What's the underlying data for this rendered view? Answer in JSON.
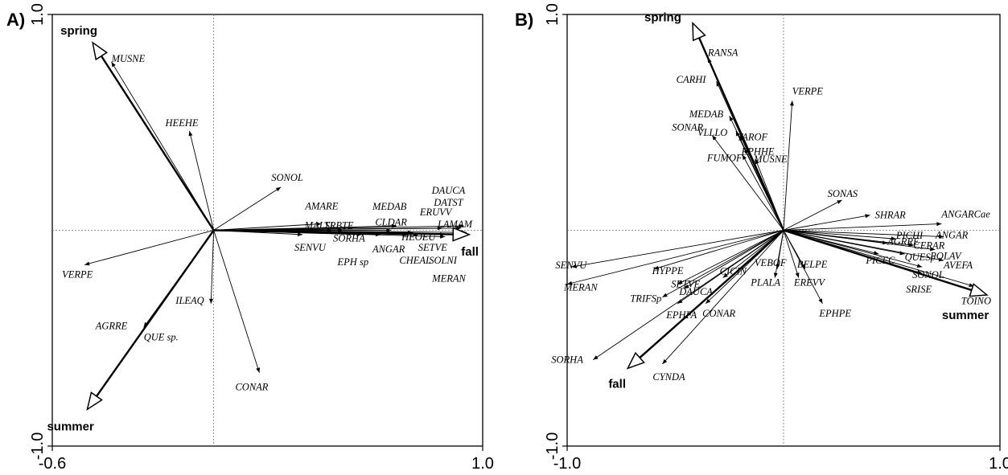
{
  "chart_data": [
    {
      "type": "scatter",
      "panel": "A)",
      "xlim": [
        -0.6,
        1.0
      ],
      "ylim": [
        -1.0,
        1.0
      ],
      "xticks": [
        "-0.6",
        "1.0"
      ],
      "yticks": [
        "1.0",
        "-1.0"
      ],
      "env_vectors": [
        {
          "label": "spring",
          "x": -0.45,
          "y": 0.87
        },
        {
          "label": "summer",
          "x": -0.47,
          "y": -0.83
        },
        {
          "label": "fall",
          "x": 0.95,
          "y": -0.02
        }
      ],
      "species": [
        {
          "label": "MUSNE",
          "x": -0.38,
          "y": 0.78
        },
        {
          "label": "HEEHE",
          "x": -0.09,
          "y": 0.46
        },
        {
          "label": "SONOL",
          "x": 0.25,
          "y": 0.2
        },
        {
          "label": "VERPE",
          "x": -0.48,
          "y": -0.16
        },
        {
          "label": "AGRRE",
          "x": -0.26,
          "y": -0.45
        },
        {
          "label": "QUE sp.",
          "x": -0.26,
          "y": -0.45
        },
        {
          "label": "ILEAQ",
          "x": -0.01,
          "y": -0.34
        },
        {
          "label": "CONAR",
          "x": 0.17,
          "y": -0.66
        },
        {
          "label": "AMARE",
          "x": 0.4,
          "y": 0.03
        },
        {
          "label": "MALSI",
          "x": 0.35,
          "y": 0.0
        },
        {
          "label": "TRBTE",
          "x": 0.44,
          "y": 0.0
        },
        {
          "label": "SENVU",
          "x": 0.33,
          "y": -0.02
        },
        {
          "label": "SORHA",
          "x": 0.48,
          "y": 0.0
        },
        {
          "label": "ANGAR",
          "x": 0.62,
          "y": -0.02
        },
        {
          "label": "EPH sp",
          "x": 0.55,
          "y": -0.02
        },
        {
          "label": "MEDAB",
          "x": 0.68,
          "y": 0.02
        },
        {
          "label": "CLDAR",
          "x": 0.66,
          "y": 0.0
        },
        {
          "label": "HEOEU",
          "x": 0.74,
          "y": -0.01
        },
        {
          "label": "SETVE",
          "x": 0.76,
          "y": -0.02
        },
        {
          "label": "CHEAL",
          "x": 0.72,
          "y": -0.02
        },
        {
          "label": "DAUCA",
          "x": 0.93,
          "y": 0.02
        },
        {
          "label": "DATST",
          "x": 0.92,
          "y": 0.01
        },
        {
          "label": "ERUVV",
          "x": 0.85,
          "y": 0.01
        },
        {
          "label": "LAMAM",
          "x": 0.94,
          "y": -0.01
        },
        {
          "label": "SOLNI",
          "x": 0.86,
          "y": -0.02
        },
        {
          "label": "MERAN",
          "x": 0.86,
          "y": -0.03
        }
      ]
    },
    {
      "type": "scatter",
      "panel": "B)",
      "xlim": [
        -1.0,
        1.0
      ],
      "ylim": [
        -1.0,
        1.0
      ],
      "xticks": [
        "-1.0",
        "1.0"
      ],
      "yticks": [
        "1.0",
        "-1.0"
      ],
      "env_vectors": [
        {
          "label": "spring",
          "x": -0.42,
          "y": 0.96
        },
        {
          "label": "summer",
          "x": 0.94,
          "y": -0.3
        },
        {
          "label": "fall",
          "x": -0.72,
          "y": -0.64
        }
      ],
      "species": [
        {
          "label": "RANSA",
          "x": -0.35,
          "y": 0.8
        },
        {
          "label": "CARHI",
          "x": -0.31,
          "y": 0.69
        },
        {
          "label": "VERPE",
          "x": 0.04,
          "y": 0.6
        },
        {
          "label": "MEDAB",
          "x": -0.25,
          "y": 0.53
        },
        {
          "label": "VLLLO",
          "x": -0.22,
          "y": 0.46
        },
        {
          "label": "TAROF",
          "x": -0.2,
          "y": 0.44
        },
        {
          "label": "SONAR",
          "x": -0.33,
          "y": 0.44
        },
        {
          "label": "EPHHE",
          "x": -0.18,
          "y": 0.38
        },
        {
          "label": "FUMOF",
          "x": -0.19,
          "y": 0.35
        },
        {
          "label": "MUSNE",
          "x": -0.13,
          "y": 0.33
        },
        {
          "label": "SONAS",
          "x": 0.27,
          "y": 0.14
        },
        {
          "label": "SHRAR",
          "x": 0.4,
          "y": 0.07
        },
        {
          "label": "ANGARCae",
          "x": 0.73,
          "y": 0.03
        },
        {
          "label": "AGRRE",
          "x": 0.48,
          "y": -0.06
        },
        {
          "label": "PICHI",
          "x": 0.52,
          "y": -0.04
        },
        {
          "label": "CERAR",
          "x": 0.6,
          "y": -0.07
        },
        {
          "label": "ANGAR",
          "x": 0.74,
          "y": -0.03
        },
        {
          "label": "PICEC",
          "x": 0.44,
          "y": -0.11
        },
        {
          "label": "QUESp",
          "x": 0.56,
          "y": -0.11
        },
        {
          "label": "POLAV",
          "x": 0.7,
          "y": -0.09
        },
        {
          "label": "AVEFA",
          "x": 0.74,
          "y": -0.14
        },
        {
          "label": "SONOL",
          "x": 0.64,
          "y": -0.17
        },
        {
          "label": "SRISE",
          "x": 0.64,
          "y": -0.2
        },
        {
          "label": "TOINO",
          "x": 0.88,
          "y": -0.26
        },
        {
          "label": "SENVU",
          "x": -0.98,
          "y": -0.17
        },
        {
          "label": "HYPPE",
          "x": -0.6,
          "y": -0.18
        },
        {
          "label": "MERAN",
          "x": -1.0,
          "y": -0.25
        },
        {
          "label": "SETVE",
          "x": -0.49,
          "y": -0.25
        },
        {
          "label": "DAUCA",
          "x": -0.46,
          "y": -0.27
        },
        {
          "label": "CICIN",
          "x": -0.28,
          "y": -0.22
        },
        {
          "label": "TRIFSp",
          "x": -0.56,
          "y": -0.31
        },
        {
          "label": "EPHFA",
          "x": -0.49,
          "y": -0.34
        },
        {
          "label": "VEBOF",
          "x": -0.03,
          "y": -0.18
        },
        {
          "label": "BELPE",
          "x": 0.1,
          "y": -0.18
        },
        {
          "label": "PLALA",
          "x": -0.04,
          "y": -0.22
        },
        {
          "label": "EREVV",
          "x": 0.07,
          "y": -0.22
        },
        {
          "label": "CONAR",
          "x": -0.36,
          "y": -0.34
        },
        {
          "label": "EPHPE",
          "x": 0.18,
          "y": -0.34
        },
        {
          "label": "SORHA",
          "x": -0.88,
          "y": -0.6
        },
        {
          "label": "CYNDA",
          "x": -0.56,
          "y": -0.62
        }
      ]
    }
  ]
}
